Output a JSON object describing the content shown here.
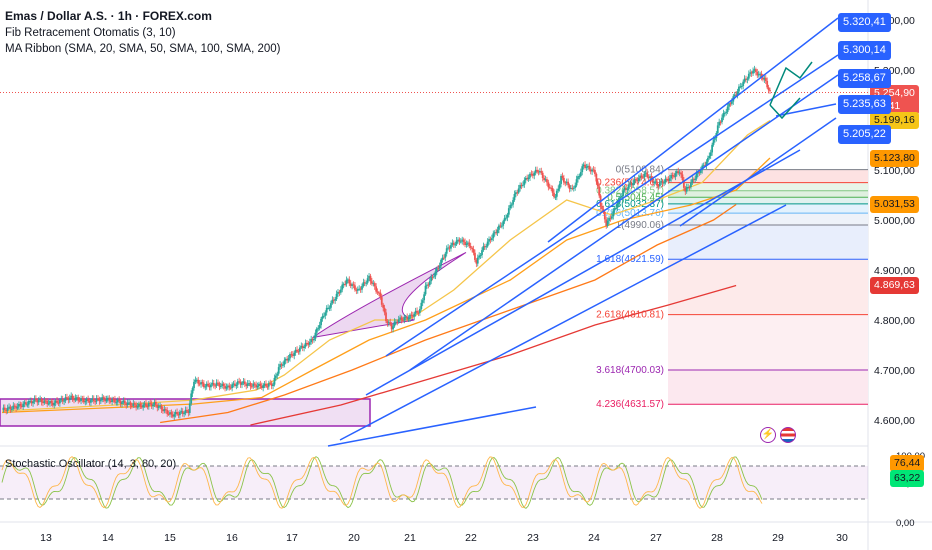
{
  "legend": {
    "title": "Emas / Dollar A.S. · 1h · FOREX.com",
    "line2": "Fib Retracement Otomatis (3, 10)",
    "line3": "MA Ribbon (SMA, 20, SMA, 50, SMA, 100, SMA, 200)",
    "stoch": "Stochastic Oscillator (14, 3, 80, 20)"
  },
  "colors": {
    "up": "#26a69a",
    "down": "#ef5350",
    "trend": "#2962ff",
    "sma20": "#f5c54a",
    "sma50": "#ff9f1a",
    "sma100": "#ff7a18",
    "sma200": "#e53935",
    "stochK": "#8bc34a",
    "stochD": "#ffb74d"
  },
  "chart_data": {
    "type": "candlestick",
    "y_axis": {
      "ticks": [
        "5.400,00",
        "5.300,00",
        "5.200,00",
        "5.100,00",
        "5.000,00",
        "4.900,00",
        "4.800,00",
        "4.700,00",
        "4.600,00"
      ],
      "min": 4560,
      "max": 5420
    },
    "x_axis": {
      "ticks": [
        "13",
        "14",
        "15",
        "16",
        "17",
        "20",
        "21",
        "22",
        "23",
        "24",
        "27",
        "28",
        "29",
        "30"
      ]
    },
    "current_price": {
      "value": "5.254,90",
      "countdown": "23:41"
    },
    "price_badges": [
      {
        "label": "5.199,16",
        "value": 5199.16,
        "bg": "#f5c518",
        "fg": "#131722"
      },
      {
        "label": "5.123,80",
        "value": 5123.8,
        "bg": "#ff9800",
        "fg": "#131722"
      },
      {
        "label": "5.031,53",
        "value": 5031.53,
        "bg": "#ff9800",
        "fg": "#131722"
      },
      {
        "label": "4.869,63",
        "value": 4869.63,
        "bg": "#e53935",
        "fg": "#ffffff"
      }
    ],
    "target_labels": [
      {
        "label": "5.320,41",
        "value": 5320.41
      },
      {
        "label": "5.300,14",
        "value": 5300.14
      },
      {
        "label": "5.258,67",
        "value": 5258.67
      },
      {
        "label": "5.235,63",
        "value": 5235.63
      },
      {
        "label": "5.205,22",
        "value": 5205.22
      }
    ],
    "fib_levels": [
      {
        "label": "0(5100.84)",
        "value": 5100.84,
        "color": "#787b86"
      },
      {
        "label": "0.236(5074.69)",
        "value": 5074.69,
        "color": "#f44336"
      },
      {
        "label": "0.382(5058.51)",
        "value": 5058.51,
        "color": "#81c784"
      },
      {
        "label": "0.5(5045.45)",
        "value": 5045.45,
        "color": "#4caf50"
      },
      {
        "label": "0.618(5032.37)",
        "value": 5032.37,
        "color": "#009688"
      },
      {
        "label": "0.786(5013.76)",
        "value": 5013.76,
        "color": "#64b5f6"
      },
      {
        "label": "1(4990.06)",
        "value": 4990.06,
        "color": "#787b86"
      },
      {
        "label": "1.618(4921.59)",
        "value": 4921.59,
        "color": "#2962ff"
      },
      {
        "label": "2.618(4810.81)",
        "value": 4810.81,
        "color": "#f44336"
      },
      {
        "label": "3.618(4700.03)",
        "value": 4700.03,
        "color": "#9c27b0"
      },
      {
        "label": "4.236(4631.57)",
        "value": 4631.57,
        "color": "#e91e63"
      }
    ],
    "stoch_axis": {
      "ticks": [
        "100,00",
        "50,00",
        "0,00"
      ],
      "k_value": "76,44",
      "d_value": "63,22"
    },
    "price_path": [
      [
        0,
        4620
      ],
      [
        3,
        4628
      ],
      [
        6,
        4640
      ],
      [
        9,
        4633
      ],
      [
        12,
        4645
      ],
      [
        15,
        4638
      ],
      [
        18,
        4642
      ],
      [
        21,
        4636
      ],
      [
        24,
        4628
      ],
      [
        27,
        4632
      ],
      [
        30,
        4610
      ],
      [
        33,
        4618
      ],
      [
        34,
        4680
      ],
      [
        36,
        4668
      ],
      [
        38,
        4672
      ],
      [
        40,
        4665
      ],
      [
        42,
        4675
      ],
      [
        44,
        4670
      ],
      [
        46,
        4668
      ],
      [
        48,
        4672
      ],
      [
        49,
        4705
      ],
      [
        51,
        4728
      ],
      [
        53,
        4745
      ],
      [
        55,
        4760
      ],
      [
        57,
        4812
      ],
      [
        59,
        4845
      ],
      [
        61,
        4880
      ],
      [
        63,
        4858
      ],
      [
        65,
        4885
      ],
      [
        67,
        4846
      ],
      [
        68,
        4800
      ],
      [
        69,
        4785
      ],
      [
        70,
        4800
      ],
      [
        72,
        4805
      ],
      [
        74,
        4820
      ],
      [
        75,
        4865
      ],
      [
        77,
        4900
      ],
      [
        79,
        4945
      ],
      [
        81,
        4960
      ],
      [
        83,
        4948
      ],
      [
        84,
        4915
      ],
      [
        85,
        4940
      ],
      [
        87,
        4970
      ],
      [
        89,
        5000
      ],
      [
        91,
        5055
      ],
      [
        93,
        5085
      ],
      [
        95,
        5100
      ],
      [
        97,
        5065
      ],
      [
        98,
        5045
      ],
      [
        99,
        5085
      ],
      [
        101,
        5060
      ],
      [
        103,
        5110
      ],
      [
        105,
        5095
      ],
      [
        106,
        5032
      ],
      [
        107,
        4992
      ],
      [
        108,
        5010
      ],
      [
        110,
        5058
      ],
      [
        112,
        5078
      ],
      [
        114,
        5092
      ],
      [
        116,
        5070
      ],
      [
        118,
        5082
      ],
      [
        120,
        5098
      ],
      [
        121,
        5058
      ],
      [
        123,
        5090
      ],
      [
        125,
        5120
      ],
      [
        127,
        5195
      ],
      [
        129,
        5235
      ],
      [
        131,
        5272
      ],
      [
        133,
        5300
      ],
      [
        135,
        5282
      ],
      [
        136,
        5255
      ]
    ]
  }
}
